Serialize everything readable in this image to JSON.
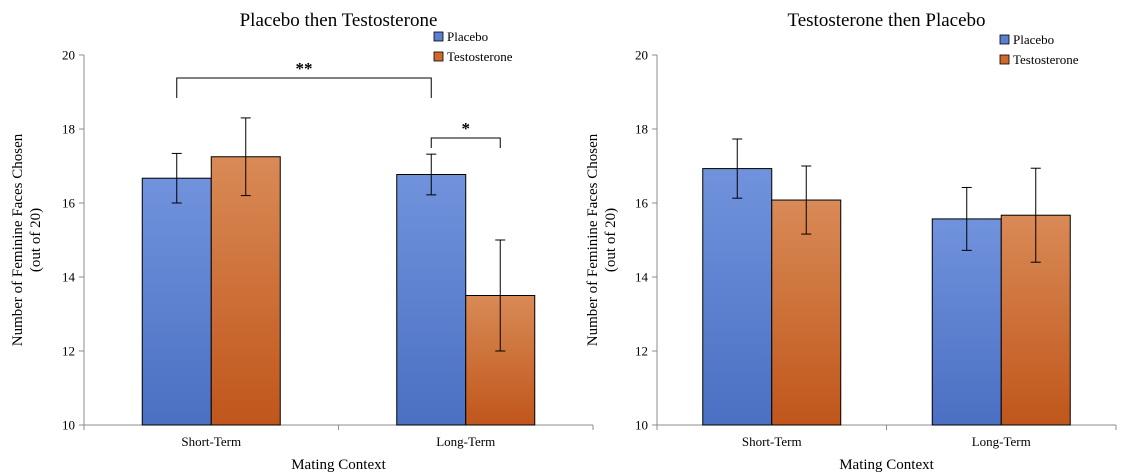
{
  "chart_data": [
    {
      "type": "bar",
      "title": "Placebo then Testosterone",
      "xlabel": "Mating Context",
      "ylabel": "Number of Feminine Faces Chosen",
      "ylabel_sub": "(out of 20)",
      "ylim": [
        10,
        20
      ],
      "yticks": [
        10,
        12,
        14,
        16,
        18,
        20
      ],
      "categories": [
        "Short-Term",
        "Long-Term"
      ],
      "legend_position": "top-right",
      "series": [
        {
          "name": "Placebo",
          "color": "#5b7fd0",
          "values": [
            16.67,
            16.77
          ],
          "errors": [
            0.67,
            0.55
          ]
        },
        {
          "name": "Testosterone",
          "color": "#cf6a2c",
          "values": [
            17.25,
            13.5
          ],
          "errors": [
            1.05,
            1.5
          ]
        }
      ],
      "annotations": [
        {
          "text": "**",
          "from": {
            "category": 0,
            "series": 0
          },
          "to": {
            "category": 1,
            "series": 0
          }
        },
        {
          "text": "*",
          "from": {
            "category": 1,
            "series": 0
          },
          "to": {
            "category": 1,
            "series": 1
          }
        }
      ]
    },
    {
      "type": "bar",
      "title": "Testosterone then Placebo",
      "xlabel": "Mating Context",
      "ylabel": "Number of Feminine Faces Chosen",
      "ylabel_sub": "(out of 20)",
      "ylim": [
        10,
        20
      ],
      "yticks": [
        10,
        12,
        14,
        16,
        18,
        20
      ],
      "categories": [
        "Short-Term",
        "Long-Term"
      ],
      "legend_position": "top-right",
      "series": [
        {
          "name": "Placebo",
          "color": "#5b7fd0",
          "values": [
            16.93,
            15.57
          ],
          "errors": [
            0.8,
            0.85
          ]
        },
        {
          "name": "Testosterone",
          "color": "#cf6a2c",
          "values": [
            16.08,
            15.67
          ],
          "errors": [
            0.92,
            1.27
          ]
        }
      ],
      "annotations": []
    }
  ]
}
